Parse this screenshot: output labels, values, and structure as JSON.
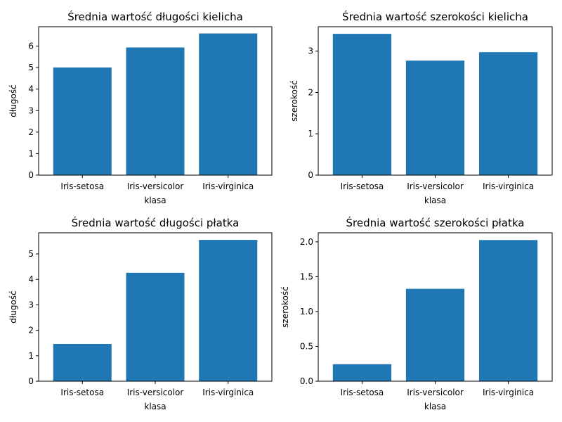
{
  "colors": {
    "bar": "#1f77b4",
    "axis": "#000000",
    "background": "#ffffff"
  },
  "chart_data": [
    {
      "type": "bar",
      "title": "Średnia wartość długości kielicha",
      "xlabel": "klasa",
      "ylabel": "długość",
      "categories": [
        "Iris-setosa",
        "Iris-versicolor",
        "Iris-virginica"
      ],
      "values": [
        5.006,
        5.936,
        6.588
      ],
      "ylim": [
        0,
        6.9
      ],
      "yticks": [
        0,
        1,
        2,
        3,
        4,
        5,
        6
      ],
      "ytick_labels": [
        "0",
        "1",
        "2",
        "3",
        "4",
        "5",
        "6"
      ],
      "grid": false
    },
    {
      "type": "bar",
      "title": "Średnia wartość szerokości kielicha",
      "xlabel": "klasa",
      "ylabel": "szerokość",
      "categories": [
        "Iris-setosa",
        "Iris-versicolor",
        "Iris-virginica"
      ],
      "values": [
        3.418,
        2.77,
        2.974
      ],
      "ylim": [
        0,
        3.59
      ],
      "yticks": [
        0,
        1,
        2,
        3
      ],
      "ytick_labels": [
        "0",
        "1",
        "2",
        "3"
      ],
      "grid": false
    },
    {
      "type": "bar",
      "title": "Średnia wartość długości płatka",
      "xlabel": "klasa",
      "ylabel": "długość",
      "categories": [
        "Iris-setosa",
        "Iris-versicolor",
        "Iris-virginica"
      ],
      "values": [
        1.464,
        4.26,
        5.552
      ],
      "ylim": [
        0,
        5.83
      ],
      "yticks": [
        0,
        1,
        2,
        3,
        4,
        5
      ],
      "ytick_labels": [
        "0",
        "1",
        "2",
        "3",
        "4",
        "5"
      ],
      "grid": false
    },
    {
      "type": "bar",
      "title": "Średnia wartość szerokości płatka",
      "xlabel": "klasa",
      "ylabel": "szerokość",
      "categories": [
        "Iris-setosa",
        "Iris-versicolor",
        "Iris-virginica"
      ],
      "values": [
        0.244,
        1.326,
        2.026
      ],
      "ylim": [
        0,
        2.13
      ],
      "yticks": [
        0,
        0.5,
        1.0,
        1.5,
        2.0
      ],
      "ytick_labels": [
        "0.0",
        "0.5",
        "1.0",
        "1.5",
        "2.0"
      ],
      "grid": false
    }
  ]
}
